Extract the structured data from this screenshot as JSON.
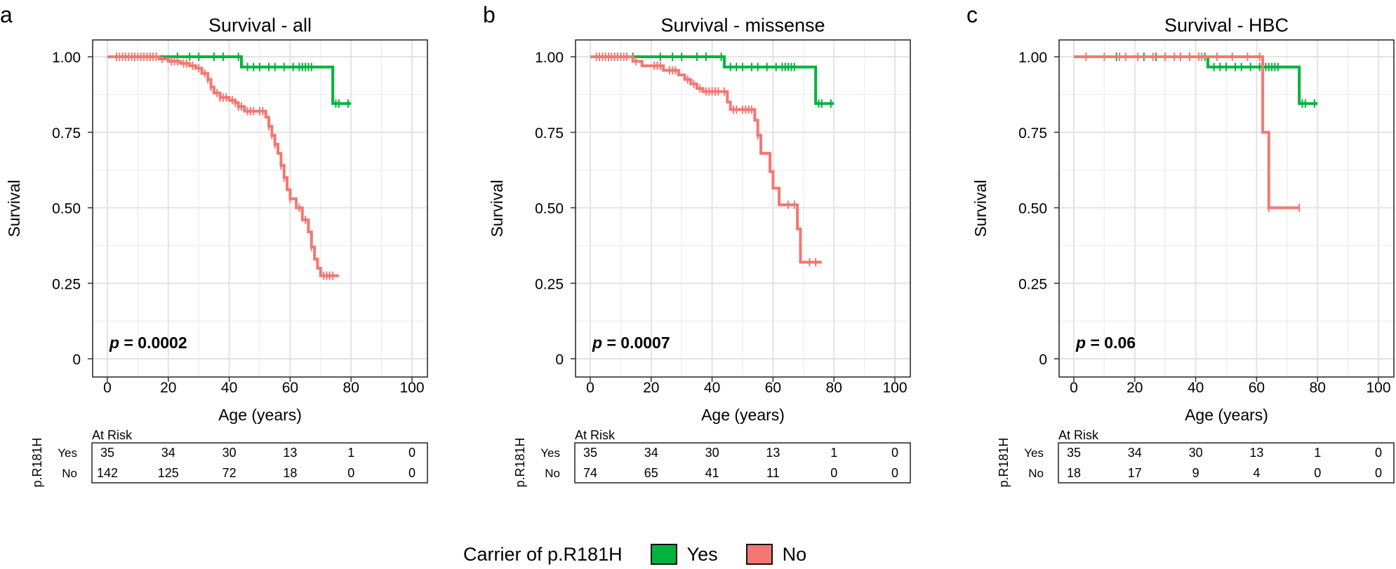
{
  "chart_data": [
    {
      "type": "line",
      "panel_letter": "a",
      "title": "Survival - all",
      "xlabel": "Age (years)",
      "ylabel": "Survival",
      "xlim": [
        0,
        100
      ],
      "ylim": [
        0,
        1
      ],
      "x_ticks": [
        "0",
        "20",
        "40",
        "60",
        "80",
        "100"
      ],
      "y_ticks": [
        "0",
        "0.25",
        "0.50",
        "0.75",
        "1.00"
      ],
      "grid": true,
      "p_label": "p",
      "p_value": "= 0.0002",
      "series": [
        {
          "name": "Yes",
          "color": "#00b33c",
          "steps": [
            [
              0,
              1.0
            ],
            [
              44,
              0.966
            ],
            [
              74,
              0.845
            ],
            [
              80,
              0.845
            ]
          ],
          "censors": [
            14,
            23,
            27,
            30,
            35,
            38,
            43,
            46,
            48,
            50,
            53,
            55,
            58,
            61,
            63,
            64,
            65,
            66,
            67,
            75,
            76,
            79
          ]
        },
        {
          "name": "No",
          "color": "#f47772",
          "steps": [
            [
              0,
              1.0
            ],
            [
              17,
              0.993
            ],
            [
              20,
              0.985
            ],
            [
              24,
              0.978
            ],
            [
              27,
              0.97
            ],
            [
              29,
              0.962
            ],
            [
              31,
              0.945
            ],
            [
              33,
              0.925
            ],
            [
              34,
              0.9
            ],
            [
              35,
              0.88
            ],
            [
              37,
              0.865
            ],
            [
              40,
              0.856
            ],
            [
              42,
              0.848
            ],
            [
              43,
              0.835
            ],
            [
              45,
              0.82
            ],
            [
              52,
              0.8
            ],
            [
              53,
              0.77
            ],
            [
              54,
              0.74
            ],
            [
              55,
              0.71
            ],
            [
              56,
              0.68
            ],
            [
              57,
              0.64
            ],
            [
              58,
              0.6
            ],
            [
              59,
              0.56
            ],
            [
              60,
              0.53
            ],
            [
              62,
              0.5
            ],
            [
              64,
              0.46
            ],
            [
              66,
              0.42
            ],
            [
              67,
              0.37
            ],
            [
              68,
              0.33
            ],
            [
              69,
              0.3
            ],
            [
              70,
              0.275
            ],
            [
              76,
              0.275
            ]
          ],
          "censors": [
            3,
            4,
            5,
            6,
            7,
            8,
            9,
            10,
            11,
            12,
            13,
            14,
            15,
            16,
            18,
            21,
            22,
            23,
            25,
            26,
            28,
            30,
            32,
            33,
            34,
            36,
            37,
            38,
            39,
            41,
            42,
            43,
            44,
            46,
            47,
            48,
            50,
            51,
            53,
            54,
            55,
            57,
            58,
            60,
            63,
            65,
            67,
            71,
            72,
            73,
            74
          ]
        }
      ],
      "risk_table": {
        "title": "At Risk",
        "rows": [
          {
            "label": "Yes",
            "values": [
              "35",
              "34",
              "30",
              "13",
              "1",
              "0"
            ]
          },
          {
            "label": "No",
            "values": [
              "142",
              "125",
              "72",
              "18",
              "0",
              "0"
            ]
          }
        ]
      },
      "risk_axis_label": "p.R181H"
    },
    {
      "type": "line",
      "panel_letter": "b",
      "title": "Survival - missense",
      "xlabel": "Age (years)",
      "ylabel": "Survival",
      "xlim": [
        0,
        100
      ],
      "ylim": [
        0,
        1
      ],
      "x_ticks": [
        "0",
        "20",
        "40",
        "60",
        "80",
        "100"
      ],
      "y_ticks": [
        "0",
        "0.25",
        "0.50",
        "0.75",
        "1.00"
      ],
      "grid": true,
      "p_label": "p",
      "p_value": "= 0.0007",
      "series": [
        {
          "name": "Yes",
          "color": "#00b33c",
          "steps": [
            [
              0,
              1.0
            ],
            [
              44,
              0.966
            ],
            [
              74,
              0.845
            ],
            [
              80,
              0.845
            ]
          ],
          "censors": [
            14,
            23,
            27,
            30,
            35,
            38,
            43,
            46,
            48,
            50,
            53,
            55,
            58,
            61,
            63,
            64,
            65,
            66,
            67,
            75,
            76,
            79
          ]
        },
        {
          "name": "No",
          "color": "#f47772",
          "steps": [
            [
              0,
              1.0
            ],
            [
              14,
              0.985
            ],
            [
              17,
              0.97
            ],
            [
              24,
              0.955
            ],
            [
              29,
              0.94
            ],
            [
              31,
              0.925
            ],
            [
              33,
              0.91
            ],
            [
              35,
              0.895
            ],
            [
              37,
              0.885
            ],
            [
              45,
              0.85
            ],
            [
              46,
              0.825
            ],
            [
              54,
              0.79
            ],
            [
              55,
              0.74
            ],
            [
              56,
              0.68
            ],
            [
              59,
              0.62
            ],
            [
              60,
              0.565
            ],
            [
              62,
              0.51
            ],
            [
              68,
              0.43
            ],
            [
              69,
              0.32
            ],
            [
              76,
              0.32
            ]
          ],
          "censors": [
            2,
            3,
            4,
            5,
            6,
            7,
            8,
            9,
            10,
            11,
            12,
            15,
            21,
            22,
            23,
            26,
            27,
            28,
            32,
            34,
            36,
            38,
            39,
            40,
            41,
            42,
            44,
            47,
            48,
            50,
            51,
            52,
            53,
            55,
            65,
            67,
            72,
            74
          ]
        }
      ],
      "risk_table": {
        "title": "At Risk",
        "rows": [
          {
            "label": "Yes",
            "values": [
              "35",
              "34",
              "30",
              "13",
              "1",
              "0"
            ]
          },
          {
            "label": "No",
            "values": [
              "74",
              "65",
              "41",
              "11",
              "0",
              "0"
            ]
          }
        ]
      },
      "risk_axis_label": "p.R181H"
    },
    {
      "type": "line",
      "panel_letter": "c",
      "title": "Survival - HBC",
      "xlabel": "Age (years)",
      "ylabel": "Survival",
      "xlim": [
        0,
        100
      ],
      "ylim": [
        0,
        1
      ],
      "x_ticks": [
        "0",
        "20",
        "40",
        "60",
        "80",
        "100"
      ],
      "y_ticks": [
        "0",
        "0.25",
        "0.50",
        "0.75",
        "1.00"
      ],
      "grid": true,
      "p_label": "p",
      "p_value": "= 0.06",
      "series": [
        {
          "name": "Yes",
          "color": "#00b33c",
          "steps": [
            [
              0,
              1.0
            ],
            [
              44,
              0.966
            ],
            [
              74,
              0.845
            ],
            [
              80,
              0.845
            ]
          ],
          "censors": [
            14,
            23,
            27,
            30,
            35,
            38,
            43,
            46,
            48,
            50,
            53,
            55,
            58,
            61,
            63,
            64,
            65,
            66,
            67,
            75,
            76,
            79
          ]
        },
        {
          "name": "No",
          "color": "#f47772",
          "steps": [
            [
              0,
              1.0
            ],
            [
              62,
              0.75
            ],
            [
              64,
              0.5
            ],
            [
              74,
              0.5
            ]
          ],
          "censors": [
            4,
            10,
            15,
            17,
            21,
            26,
            30,
            33,
            35,
            38,
            41,
            42,
            47,
            52,
            57,
            61,
            64,
            74
          ]
        }
      ],
      "risk_table": {
        "title": "At Risk",
        "rows": [
          {
            "label": "Yes",
            "values": [
              "35",
              "34",
              "30",
              "13",
              "1",
              "0"
            ]
          },
          {
            "label": "No",
            "values": [
              "18",
              "17",
              "9",
              "4",
              "0",
              "0"
            ]
          }
        ]
      },
      "risk_axis_label": "p.R181H"
    }
  ],
  "legend": {
    "title": "Carrier of p.R181H",
    "items": [
      {
        "label": "Yes",
        "color": "#00b33c"
      },
      {
        "label": "No",
        "color": "#f47772"
      }
    ]
  }
}
